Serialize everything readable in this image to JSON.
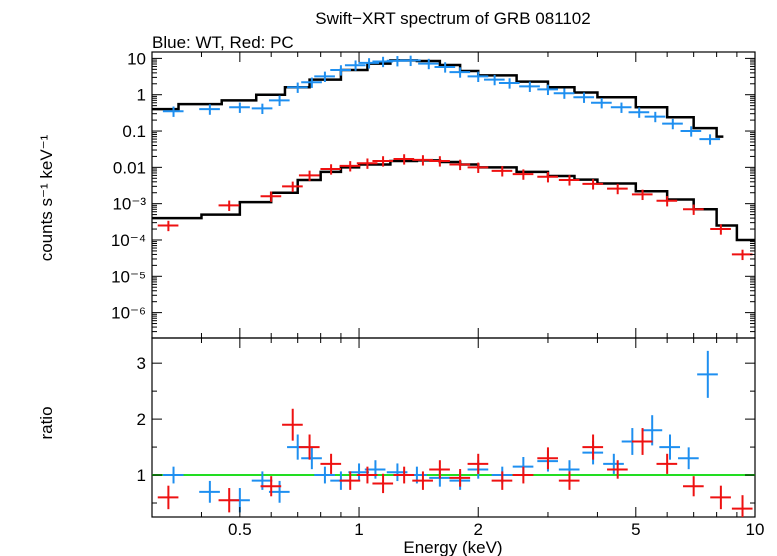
{
  "chart_data": {
    "type": "scatter",
    "title": "Swift−XRT spectrum of GRB 081102",
    "subtitle": "Blue: WT, Red: PC",
    "xlabel": "Energy (keV)",
    "x_scale": "log",
    "xlim": [
      0.3,
      10
    ],
    "x_ticks": [
      "0.5",
      "1",
      "2",
      "5",
      "10"
    ],
    "panels": [
      {
        "ylabel": "counts s⁻¹ keV⁻¹",
        "y_scale": "log",
        "ylim": [
          2e-07,
          15
        ],
        "y_ticks": [
          "10",
          "1",
          "0.1",
          "0.01",
          "10⁻³",
          "10⁻⁴",
          "10⁻⁵",
          "10⁻⁶"
        ],
        "series": [
          {
            "color": "#1e8ff0",
            "points": [
              [
                0.34,
                0.35
              ],
              [
                0.42,
                0.4
              ],
              [
                0.5,
                0.45
              ],
              [
                0.57,
                0.42
              ],
              [
                0.63,
                0.7
              ],
              [
                0.7,
                1.6
              ],
              [
                0.76,
                2.2
              ],
              [
                0.82,
                3.2
              ],
              [
                0.9,
                4.8
              ],
              [
                0.98,
                6.5
              ],
              [
                1.06,
                7.5
              ],
              [
                1.15,
                8.2
              ],
              [
                1.25,
                8.6
              ],
              [
                1.35,
                8.8
              ],
              [
                1.5,
                7.2
              ],
              [
                1.65,
                5.8
              ],
              [
                1.8,
                4.2
              ],
              [
                2.0,
                3.2
              ],
              [
                2.2,
                2.6
              ],
              [
                2.4,
                2.1
              ],
              [
                2.7,
                1.7
              ],
              [
                3.0,
                1.4
              ],
              [
                3.3,
                1.1
              ],
              [
                3.7,
                0.85
              ],
              [
                4.1,
                0.6
              ],
              [
                4.6,
                0.45
              ],
              [
                5.1,
                0.33
              ],
              [
                5.6,
                0.25
              ],
              [
                6.2,
                0.16
              ],
              [
                6.9,
                0.1
              ],
              [
                7.7,
                0.06
              ]
            ]
          },
          {
            "color": "#ee1111",
            "points": [
              [
                0.33,
                0.00025
              ],
              [
                0.47,
                0.0009
              ],
              [
                0.6,
                0.0016
              ],
              [
                0.68,
                0.003
              ],
              [
                0.75,
                0.006
              ],
              [
                0.85,
                0.009
              ],
              [
                0.95,
                0.011
              ],
              [
                1.05,
                0.013
              ],
              [
                1.15,
                0.015
              ],
              [
                1.3,
                0.017
              ],
              [
                1.45,
                0.016
              ],
              [
                1.6,
                0.015
              ],
              [
                1.8,
                0.012
              ],
              [
                2.0,
                0.01
              ],
              [
                2.3,
                0.008
              ],
              [
                2.6,
                0.0065
              ],
              [
                3.0,
                0.0055
              ],
              [
                3.4,
                0.0045
              ],
              [
                3.9,
                0.0035
              ],
              [
                4.5,
                0.0026
              ],
              [
                5.2,
                0.0018
              ],
              [
                6.0,
                0.0012
              ],
              [
                7.0,
                0.0007
              ],
              [
                8.2,
                0.0002
              ],
              [
                9.3,
                4e-05
              ]
            ]
          }
        ],
        "model": {
          "color": "#000000",
          "wt": [
            [
              0.3,
              0.4
            ],
            [
              0.35,
              0.55
            ],
            [
              0.45,
              0.7
            ],
            [
              0.55,
              1.0
            ],
            [
              0.65,
              1.6
            ],
            [
              0.75,
              2.6
            ],
            [
              0.9,
              4.8
            ],
            [
              1.05,
              7.2
            ],
            [
              1.2,
              8.8
            ],
            [
              1.4,
              8.5
            ],
            [
              1.6,
              6.6
            ],
            [
              1.8,
              4.5
            ],
            [
              2.0,
              3.4
            ],
            [
              2.5,
              2.3
            ],
            [
              3.0,
              1.6
            ],
            [
              3.5,
              1.15
            ],
            [
              4.0,
              0.85
            ],
            [
              5.0,
              0.45
            ],
            [
              6.0,
              0.24
            ],
            [
              7.0,
              0.12
            ],
            [
              8.0,
              0.07
            ]
          ],
          "pc": [
            [
              0.3,
              0.0004
            ],
            [
              0.4,
              0.0005
            ],
            [
              0.5,
              0.0011
            ],
            [
              0.6,
              0.002
            ],
            [
              0.7,
              0.0045
            ],
            [
              0.8,
              0.0075
            ],
            [
              0.9,
              0.01
            ],
            [
              1.0,
              0.012
            ],
            [
              1.2,
              0.015
            ],
            [
              1.4,
              0.0155
            ],
            [
              1.6,
              0.014
            ],
            [
              1.8,
              0.012
            ],
            [
              2.0,
              0.01
            ],
            [
              2.5,
              0.0075
            ],
            [
              3.0,
              0.0058
            ],
            [
              3.5,
              0.0046
            ],
            [
              4.0,
              0.0036
            ],
            [
              5.0,
              0.0022
            ],
            [
              6.0,
              0.0013
            ],
            [
              7.0,
              0.0007
            ],
            [
              8.0,
              0.00025
            ],
            [
              9.0,
              0.0001
            ],
            [
              10.0,
              0.0001
            ]
          ]
        }
      },
      {
        "ylabel": "ratio",
        "y_scale": "linear",
        "ylim": [
          0.25,
          3.45
        ],
        "y_ticks": [
          "1",
          "2",
          "3"
        ],
        "reference_line": {
          "y": 1,
          "color": "#22dd22"
        },
        "series": [
          {
            "color": "#1e8ff0",
            "points": [
              [
                0.34,
                1.0
              ],
              [
                0.42,
                0.7
              ],
              [
                0.5,
                0.55
              ],
              [
                0.57,
                0.9
              ],
              [
                0.63,
                0.7
              ],
              [
                0.7,
                1.5
              ],
              [
                0.76,
                1.3
              ],
              [
                0.82,
                1.0
              ],
              [
                0.9,
                0.9
              ],
              [
                1.0,
                1.05
              ],
              [
                1.1,
                1.1
              ],
              [
                1.25,
                1.05
              ],
              [
                1.4,
                1.0
              ],
              [
                1.6,
                0.95
              ],
              [
                1.8,
                0.9
              ],
              [
                2.0,
                1.1
              ],
              [
                2.3,
                1.0
              ],
              [
                2.6,
                1.15
              ],
              [
                3.0,
                1.25
              ],
              [
                3.4,
                1.1
              ],
              [
                3.9,
                1.4
              ],
              [
                4.4,
                1.2
              ],
              [
                4.9,
                1.6
              ],
              [
                5.5,
                1.8
              ],
              [
                6.1,
                1.5
              ],
              [
                6.8,
                1.3
              ],
              [
                7.6,
                2.8
              ]
            ]
          },
          {
            "color": "#ee1111",
            "points": [
              [
                0.33,
                0.6
              ],
              [
                0.47,
                0.55
              ],
              [
                0.6,
                0.8
              ],
              [
                0.68,
                1.9
              ],
              [
                0.75,
                1.5
              ],
              [
                0.85,
                1.2
              ],
              [
                0.95,
                0.9
              ],
              [
                1.05,
                1.0
              ],
              [
                1.15,
                0.85
              ],
              [
                1.3,
                1.0
              ],
              [
                1.45,
                0.9
              ],
              [
                1.6,
                1.1
              ],
              [
                1.8,
                0.95
              ],
              [
                2.0,
                1.2
              ],
              [
                2.3,
                0.9
              ],
              [
                2.6,
                1.0
              ],
              [
                3.0,
                1.3
              ],
              [
                3.4,
                0.9
              ],
              [
                3.9,
                1.5
              ],
              [
                4.5,
                1.1
              ],
              [
                5.2,
                1.6
              ],
              [
                6.0,
                1.2
              ],
              [
                7.0,
                0.8
              ],
              [
                8.2,
                0.6
              ],
              [
                9.3,
                0.4
              ]
            ]
          }
        ]
      }
    ]
  }
}
